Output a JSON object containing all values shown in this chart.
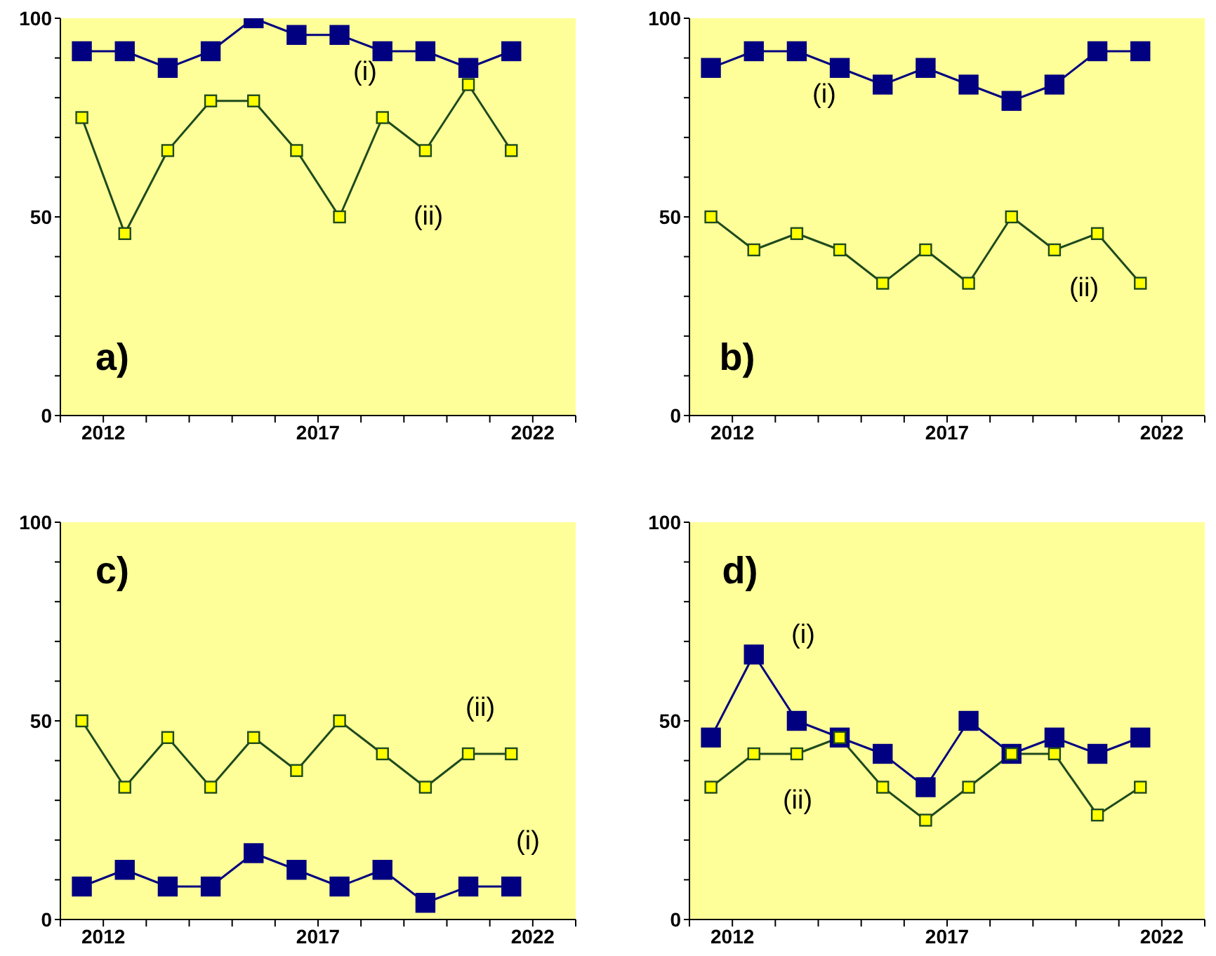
{
  "chart_data": [
    {
      "type": "line",
      "annotations": [
        "a)"
      ],
      "x": [
        2011.5,
        2012.5,
        2013.5,
        2014.5,
        2015.5,
        2016.5,
        2017.5,
        2018.5,
        2019.5,
        2020.5,
        2021.5
      ],
      "marker": "square",
      "series": [
        {
          "name": "(i)",
          "color": "#000080",
          "values": [
            91.7,
            91.7,
            87.5,
            91.7,
            100,
            95.8,
            95.8,
            91.7,
            91.7,
            87.5,
            91.7
          ]
        },
        {
          "name": "(ii)",
          "color": "#1e4a1e",
          "values": [
            75,
            45.8,
            66.7,
            79.2,
            79.2,
            66.7,
            50,
            75,
            66.7,
            83.3,
            66.7
          ]
        }
      ],
      "xlim": [
        2011,
        2023
      ],
      "xticks": [
        {
          "value": 2011,
          "label": null
        },
        2012,
        {
          "value": 2013,
          "label": null
        },
        {
          "value": 2014,
          "label": null
        },
        {
          "value": 2015,
          "label": null
        },
        {
          "value": 2016,
          "label": null
        },
        2017,
        {
          "value": 2018,
          "label": null
        },
        {
          "value": 2019,
          "label": null
        },
        {
          "value": 2020,
          "label": null
        },
        {
          "value": 2021,
          "label": null
        },
        2022,
        {
          "value": 2023,
          "label": null
        }
      ],
      "ylim": [
        0,
        100
      ],
      "yticks": [
        0,
        {
          "value": 10,
          "label": null
        },
        {
          "value": 20,
          "label": null
        },
        {
          "value": 30,
          "label": null
        },
        {
          "value": 40,
          "label": null
        },
        50,
        {
          "value": 60,
          "label": null
        },
        {
          "value": 70,
          "label": null
        },
        {
          "value": 80,
          "label": null
        },
        {
          "value": 90,
          "label": null
        },
        100
      ]
    },
    {
      "type": "line",
      "annotations": [
        "b)"
      ],
      "x": [
        2011.5,
        2012.5,
        2013.5,
        2014.5,
        2015.5,
        2016.5,
        2017.5,
        2018.5,
        2019.5,
        2020.5,
        2021.5
      ],
      "marker": "square",
      "series": [
        {
          "name": "(i)",
          "color": "#000080",
          "values": [
            87.5,
            91.7,
            91.7,
            87.5,
            83.3,
            87.5,
            83.3,
            79.2,
            83.3,
            91.7,
            91.7
          ]
        },
        {
          "name": "(ii)",
          "color": "#1e4a1e",
          "values": [
            50,
            41.7,
            45.8,
            41.7,
            33.3,
            41.7,
            33.3,
            50,
            41.7,
            45.8,
            33.3
          ]
        }
      ],
      "xlim": [
        2011,
        2023
      ],
      "xticks": [
        {
          "value": 2011,
          "label": null
        },
        2012,
        {
          "value": 2013,
          "label": null
        },
        {
          "value": 2014,
          "label": null
        },
        {
          "value": 2015,
          "label": null
        },
        {
          "value": 2016,
          "label": null
        },
        2017,
        {
          "value": 2018,
          "label": null
        },
        {
          "value": 2019,
          "label": null
        },
        {
          "value": 2020,
          "label": null
        },
        {
          "value": 2021,
          "label": null
        },
        2022,
        {
          "value": 2023,
          "label": null
        }
      ],
      "ylim": [
        0,
        100
      ],
      "yticks": [
        0,
        {
          "value": 10,
          "label": null
        },
        {
          "value": 20,
          "label": null
        },
        {
          "value": 30,
          "label": null
        },
        {
          "value": 40,
          "label": null
        },
        50,
        {
          "value": 60,
          "label": null
        },
        {
          "value": 70,
          "label": null
        },
        {
          "value": 80,
          "label": null
        },
        {
          "value": 90,
          "label": null
        },
        100
      ]
    },
    {
      "type": "line",
      "annotations": [
        "c)"
      ],
      "x": [
        2011.5,
        2012.5,
        2013.5,
        2014.5,
        2015.5,
        2016.5,
        2017.5,
        2018.5,
        2019.5,
        2020.5,
        2021.5
      ],
      "marker": "square",
      "series": [
        {
          "name": "(i)",
          "color": "#000080",
          "values": [
            8.3,
            12.5,
            8.3,
            8.3,
            16.7,
            12.5,
            8.3,
            12.5,
            4.2,
            8.3,
            8.3
          ]
        },
        {
          "name": "(ii)",
          "color": "#1e4a1e",
          "values": [
            50,
            33.3,
            45.8,
            33.3,
            45.8,
            37.5,
            50,
            41.7,
            33.3,
            41.7,
            41.7
          ]
        }
      ],
      "xlim": [
        2011,
        2023
      ],
      "xticks": [
        {
          "value": 2011,
          "label": null
        },
        2012,
        {
          "value": 2013,
          "label": null
        },
        {
          "value": 2014,
          "label": null
        },
        {
          "value": 2015,
          "label": null
        },
        {
          "value": 2016,
          "label": null
        },
        2017,
        {
          "value": 2018,
          "label": null
        },
        {
          "value": 2019,
          "label": null
        },
        {
          "value": 2020,
          "label": null
        },
        {
          "value": 2021,
          "label": null
        },
        2022,
        {
          "value": 2023,
          "label": null
        }
      ],
      "ylim": [
        0,
        100
      ],
      "yticks": [
        0,
        {
          "value": 10,
          "label": null
        },
        {
          "value": 20,
          "label": null
        },
        {
          "value": 30,
          "label": null
        },
        {
          "value": 40,
          "label": null
        },
        50,
        {
          "value": 60,
          "label": null
        },
        {
          "value": 70,
          "label": null
        },
        {
          "value": 80,
          "label": null
        },
        {
          "value": 90,
          "label": null
        },
        100
      ]
    },
    {
      "type": "line",
      "annotations": [
        "d)"
      ],
      "x": [
        2011.5,
        2012.5,
        2013.5,
        2014.5,
        2015.5,
        2016.5,
        2017.5,
        2018.5,
        2019.5,
        2020.5,
        2021.5
      ],
      "marker": "square",
      "series": [
        {
          "name": "(i)",
          "color": "#000080",
          "values": [
            45.8,
            66.7,
            50,
            45.8,
            41.7,
            33.3,
            50,
            41.7,
            45.8,
            41.7,
            45.8
          ]
        },
        {
          "name": "(ii)",
          "color": "#1e4a1e",
          "values": [
            33.3,
            41.7,
            41.7,
            45.8,
            33.3,
            25,
            33.3,
            41.7,
            41.7,
            26.3,
            33.3
          ]
        }
      ],
      "xlim": [
        2011,
        2023
      ],
      "xticks": [
        {
          "value": 2011,
          "label": null
        },
        2012,
        {
          "value": 2013,
          "label": null
        },
        {
          "value": 2014,
          "label": null
        },
        {
          "value": 2015,
          "label": null
        },
        {
          "value": 2016,
          "label": null
        },
        2017,
        {
          "value": 2018,
          "label": null
        },
        {
          "value": 2019,
          "label": null
        },
        {
          "value": 2020,
          "label": null
        },
        {
          "value": 2021,
          "label": null
        },
        2022,
        {
          "value": 2023,
          "label": null
        }
      ],
      "ylim": [
        0,
        100
      ],
      "yticks": [
        0,
        {
          "value": 10,
          "label": null
        },
        {
          "value": 20,
          "label": null
        },
        {
          "value": 30,
          "label": null
        },
        {
          "value": 40,
          "label": null
        },
        50,
        {
          "value": 60,
          "label": null
        },
        {
          "value": 70,
          "label": null
        },
        {
          "value": 80,
          "label": null
        },
        {
          "value": 90,
          "label": null
        },
        100
      ]
    }
  ]
}
